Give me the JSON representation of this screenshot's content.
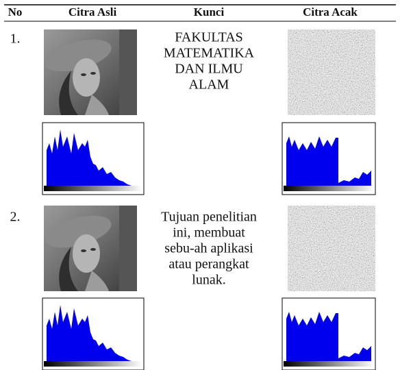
{
  "table": {
    "header": [
      "No",
      "Citra Asli",
      "Kunci",
      "Citra Acak"
    ],
    "rows": [
      {
        "no": "1.",
        "key_lines": [
          "FAKULTAS",
          "MATEMATIKA",
          "DAN ILMU",
          "ALAM"
        ]
      },
      {
        "no": "2.",
        "key_lines": [
          "Tujuan penelitian",
          "ini, membuat",
          "sebu-ah aplikasi",
          "atau perangkat",
          "lunak."
        ]
      }
    ]
  }
}
